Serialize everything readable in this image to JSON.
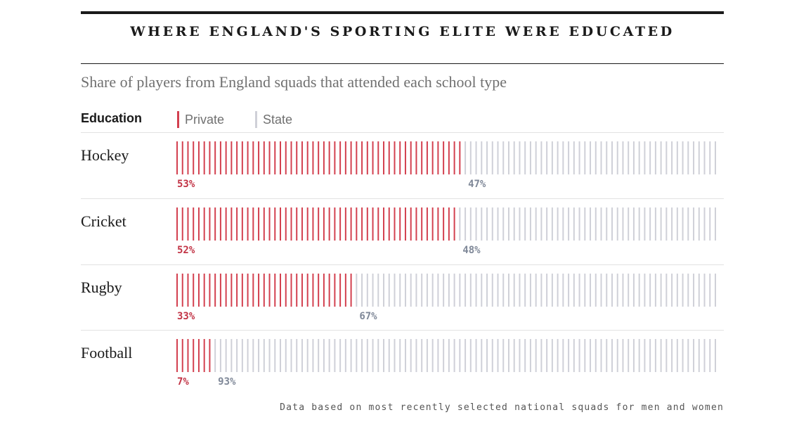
{
  "title": "WHERE ENGLAND'S SPORTING ELITE WERE EDUCATED",
  "subtitle": "Share of players from England squads that attended each school type",
  "legend": {
    "heading": "Education",
    "items": [
      {
        "label": "Private",
        "color": "#d3404f"
      },
      {
        "label": "State",
        "color": "#cfd0d8"
      }
    ]
  },
  "chart_data": {
    "type": "bar",
    "stacked": true,
    "orientation": "horizontal",
    "categories": [
      "Hockey",
      "Cricket",
      "Rugby",
      "Football"
    ],
    "series": [
      {
        "name": "Private",
        "values": [
          53,
          52,
          33,
          7
        ],
        "color": "#d3404f",
        "label_color": "#c23446"
      },
      {
        "name": "State",
        "values": [
          47,
          48,
          67,
          93
        ],
        "color": "#cfd0d8",
        "label_color": "#7f8898"
      }
    ],
    "labels": {
      "Private": [
        "53%",
        "52%",
        "33%",
        "7%"
      ],
      "State": [
        "47%",
        "48%",
        "67%",
        "93%"
      ]
    },
    "xlim": [
      0,
      100
    ],
    "unit": "%"
  },
  "footnote": "Data based on most recently selected national squads for men and women"
}
